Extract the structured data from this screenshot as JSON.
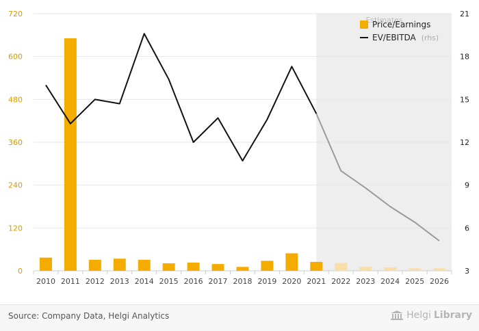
{
  "chart_data": {
    "type": "bar",
    "categories": [
      "2010",
      "2011",
      "2012",
      "2013",
      "2014",
      "2015",
      "2016",
      "2017",
      "2018",
      "2019",
      "2020",
      "2021",
      "2022",
      "2023",
      "2024",
      "2025",
      "2026"
    ],
    "estimates_label": "Estimates",
    "estimates_start": "2022",
    "left_axis": {
      "ylim": [
        0,
        720
      ],
      "ticks": [
        "0",
        "120",
        "240",
        "360",
        "480",
        "600",
        "720"
      ]
    },
    "right_axis": {
      "ylim": [
        3,
        21
      ],
      "ticks": [
        "3",
        "6",
        "9",
        "12",
        "15",
        "18",
        "21"
      ]
    },
    "series": [
      {
        "name": "Price/Earnings",
        "type": "bar",
        "axis": "left",
        "color": "#f5ac00",
        "estimate_color": "#f7deaa",
        "values": [
          37,
          651,
          31,
          34,
          31,
          21,
          23,
          19,
          11,
          28,
          49,
          25,
          22,
          11,
          10,
          7,
          7
        ]
      },
      {
        "name": "EV/EBITDA",
        "name_suffix": "(rhs)",
        "type": "line",
        "axis": "right",
        "color": "#111111",
        "estimate_color": "#9a9a9a",
        "values": [
          16.0,
          13.3,
          15.0,
          14.7,
          19.6,
          16.4,
          12.0,
          13.7,
          10.7,
          13.6,
          17.3,
          14.0,
          10.0,
          8.8,
          7.5,
          6.4,
          5.1
        ]
      }
    ],
    "grid": true,
    "legend_position": "top-right"
  },
  "footer": {
    "source": "Source: Company Data, Helgi Analytics",
    "brand_light": "Helgi",
    "brand_bold": "Library"
  },
  "icons": {
    "brand_logo": "library-building-icon"
  }
}
